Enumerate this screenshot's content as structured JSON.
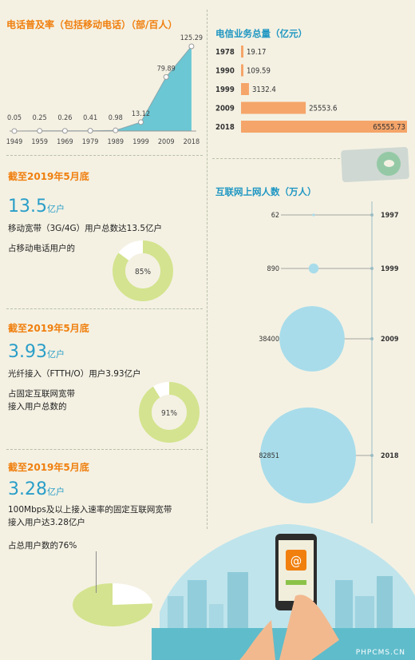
{
  "colors": {
    "orange": "#f07f0e",
    "blue": "#1e96c2",
    "bar": "#f5a56a",
    "teal": "#6bc7d4",
    "circle": "#a8dcea",
    "donut": "#d4e38f",
    "bg": "#f4f1e3"
  },
  "icons": {
    "chat": "chat-bubble-icon",
    "browser": "browser-at-icon"
  },
  "phone_chart": {
    "title": "电话普及率（包括移动电话）（部/百人）",
    "chart_data": {
      "type": "area",
      "x": [
        "1949",
        "1959",
        "1969",
        "1979",
        "1989",
        "1999",
        "2009",
        "2018"
      ],
      "values": [
        0.05,
        0.25,
        0.26,
        0.41,
        0.98,
        13.12,
        79.89,
        125.29
      ],
      "labels": [
        "0.05",
        "0.25",
        "0.26",
        "0.41",
        "0.98",
        "13.12",
        "79.89",
        "125.29"
      ],
      "ylim": [
        0,
        130
      ]
    }
  },
  "telecom_chart": {
    "title": "电信业务总量（亿元）",
    "chart_data": {
      "type": "bar",
      "categories": [
        "1978",
        "1990",
        "1999",
        "2009",
        "2018"
      ],
      "values": [
        19.17,
        109.59,
        3132.4,
        25553.6,
        65555.73
      ],
      "labels": [
        "19.17",
        "109.59",
        "3132.4",
        "25553.6",
        "65555.73"
      ]
    }
  },
  "internet_chart": {
    "title": "互联网上网人数（万人）",
    "chart_data": {
      "type": "bubble",
      "categories": [
        "1997",
        "1999",
        "2009",
        "2018"
      ],
      "values": [
        62,
        890,
        38400,
        82851
      ],
      "labels": [
        "62",
        "890",
        "38400",
        "82851"
      ]
    }
  },
  "stats": [
    {
      "heading": "截至2019年5月底",
      "number": "13.5",
      "unit": "亿户",
      "lines": [
        "移动宽带（3G/4G）用户总数达13.5亿户",
        "占移动电话用户的"
      ],
      "percent": 85,
      "percent_label": "85%"
    },
    {
      "heading": "截至2019年5月底",
      "number": "3.93",
      "unit": "亿户",
      "lines": [
        "光纤接入（FTTH/O）用户3.93亿户",
        "占固定互联网宽带",
        "接入用户总数的"
      ],
      "percent": 91,
      "percent_label": "91%"
    },
    {
      "heading": "截至2019年5月底",
      "number": "3.28",
      "unit": "亿户",
      "lines": [
        "100Mbps及以上接入速率的固定互联网宽带",
        "接入用户达3.28亿户",
        "占总用户数的76%"
      ],
      "percent": 76
    }
  ],
  "watermark": "PHPCMS.CN"
}
